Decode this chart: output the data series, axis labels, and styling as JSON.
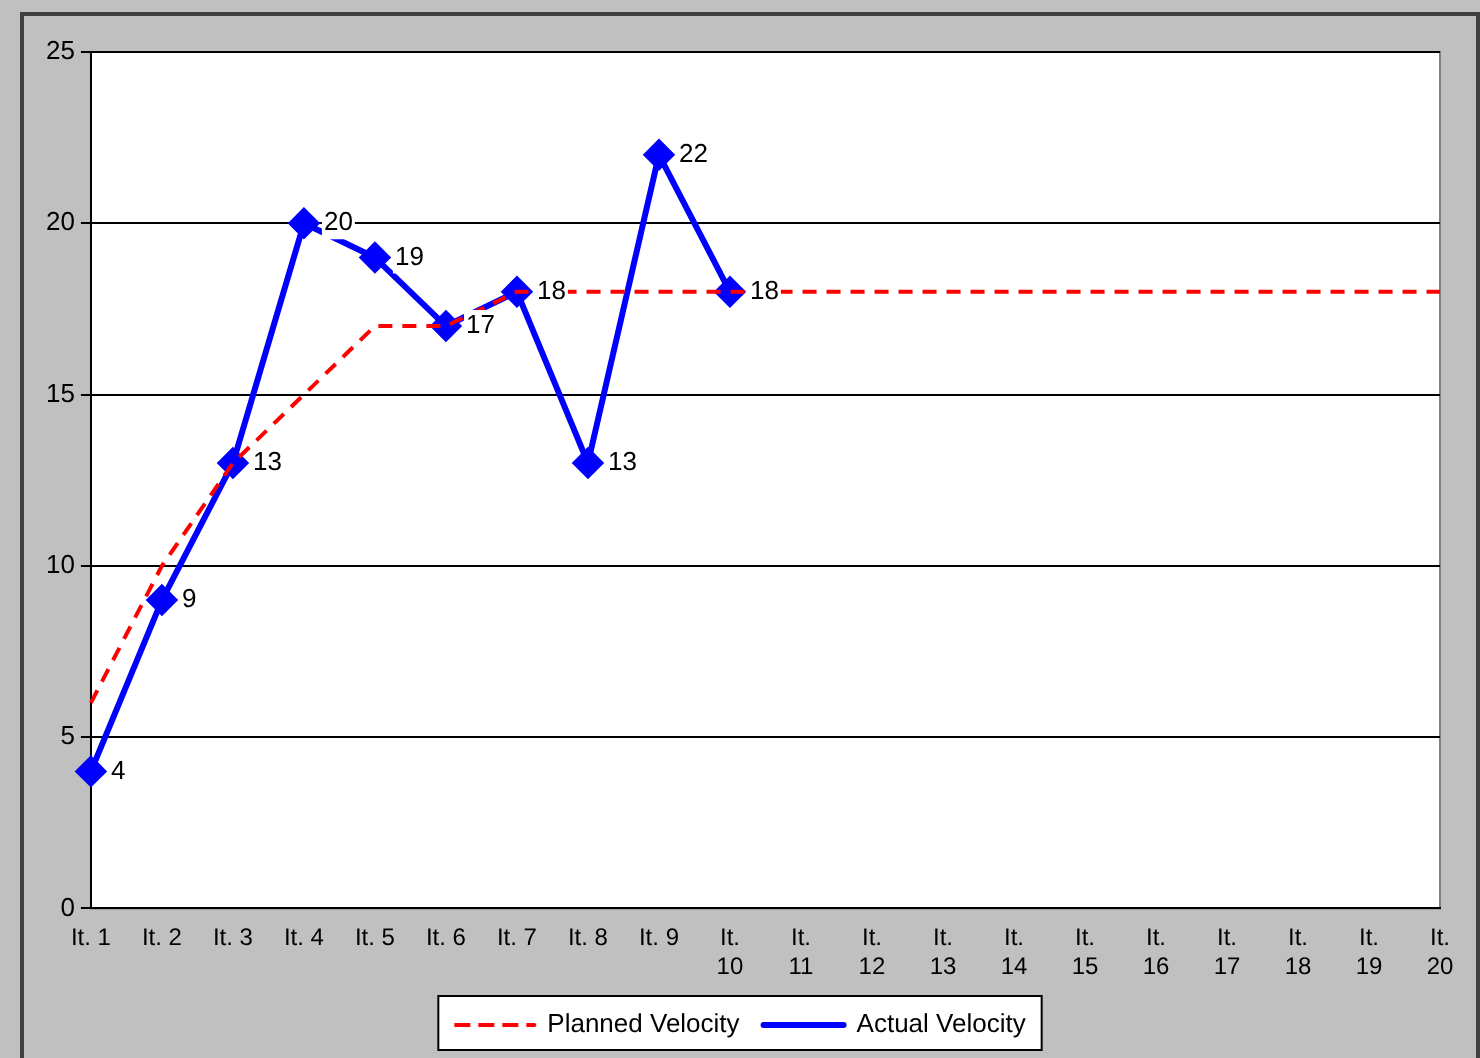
{
  "chart_data": {
    "type": "line",
    "categories": [
      "It. 1",
      "It. 2",
      "It. 3",
      "It. 4",
      "It. 5",
      "It. 6",
      "It. 7",
      "It. 8",
      "It. 9",
      "It. 10",
      "It. 11",
      "It. 12",
      "It. 13",
      "It. 14",
      "It. 15",
      "It. 16",
      "It. 17",
      "It. 18",
      "It. 19",
      "It. 20"
    ],
    "series": [
      {
        "name": "Planned Velocity",
        "color": "#ff0000",
        "line_style": "dashed",
        "marker": "none",
        "values": [
          6,
          10,
          13,
          15,
          17,
          17,
          18,
          18,
          18,
          18,
          18,
          18,
          18,
          18,
          18,
          18,
          18,
          18,
          18,
          18
        ]
      },
      {
        "name": "Actual Velocity",
        "color": "#0000ff",
        "line_style": "solid",
        "marker": "diamond",
        "values": [
          4,
          9,
          13,
          20,
          19,
          17,
          18,
          13,
          22,
          18,
          null,
          null,
          null,
          null,
          null,
          null,
          null,
          null,
          null,
          null
        ],
        "value_labels": [
          "4",
          "9",
          "13",
          "20",
          "19",
          "17",
          "18",
          "13",
          "22",
          "18",
          null,
          null,
          null,
          null,
          null,
          null,
          null,
          null,
          null,
          null
        ]
      }
    ],
    "ylim": [
      0,
      25
    ],
    "yticks": [
      0,
      5,
      10,
      15,
      20,
      25
    ],
    "grid": "y",
    "legend": "bottom"
  }
}
